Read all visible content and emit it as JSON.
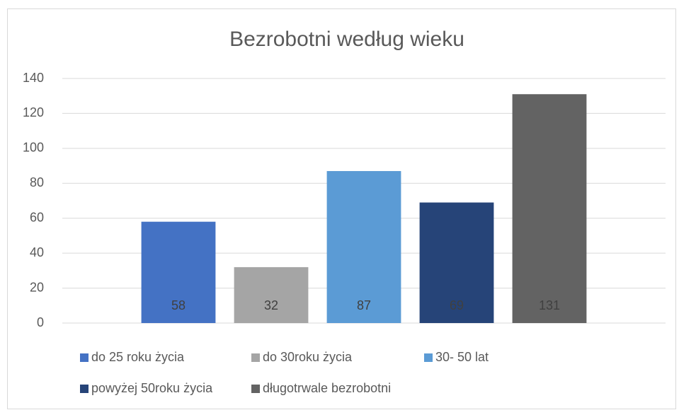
{
  "chart_data": {
    "type": "bar",
    "title": "Bezrobotni według wieku",
    "categories": [
      null
    ],
    "series": [
      {
        "name": "do 25 roku życia",
        "color": "#4472c4",
        "values": [
          58
        ]
      },
      {
        "name": "do 30roku życia",
        "color": "#a5a5a5",
        "values": [
          32
        ]
      },
      {
        "name": "30- 50 lat",
        "color": "#5b9bd5",
        "values": [
          87
        ]
      },
      {
        "name": "powyżej 50roku życia",
        "color": "#264478",
        "values": [
          69
        ]
      },
      {
        "name": "długotrwale bezrobotni",
        "color": "#636363",
        "values": [
          131
        ]
      }
    ],
    "ylim": [
      0,
      140
    ],
    "yticks": [
      0,
      20,
      40,
      60,
      80,
      100,
      120,
      140
    ],
    "grid": true,
    "legend": "bottom"
  }
}
